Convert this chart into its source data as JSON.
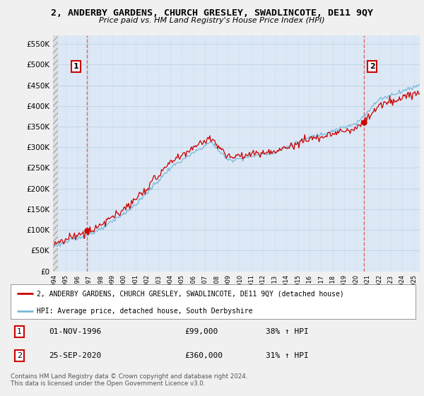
{
  "title": "2, ANDERBY GARDENS, CHURCH GRESLEY, SWADLINCOTE, DE11 9QY",
  "subtitle": "Price paid vs. HM Land Registry's House Price Index (HPI)",
  "legend_line1": "2, ANDERBY GARDENS, CHURCH GRESLEY, SWADLINCOTE, DE11 9QY (detached house)",
  "legend_line2": "HPI: Average price, detached house, South Derbyshire",
  "sale1_date": "01-NOV-1996",
  "sale1_price": "£99,000",
  "sale1_hpi": "38% ↑ HPI",
  "sale2_date": "25-SEP-2020",
  "sale2_price": "£360,000",
  "sale2_hpi": "31% ↑ HPI",
  "footnote": "Contains HM Land Registry data © Crown copyright and database right 2024.\nThis data is licensed under the Open Government Licence v3.0.",
  "hpi_color": "#7ab8d8",
  "price_color": "#cc0000",
  "marker_color": "#cc0000",
  "vline_color": "#dd4444",
  "bg_color": "#f0f0f0",
  "plot_bg": "#dce8f5",
  "grid_color": "#b8cfe0",
  "hatch_bg": "#e0e0e0"
}
